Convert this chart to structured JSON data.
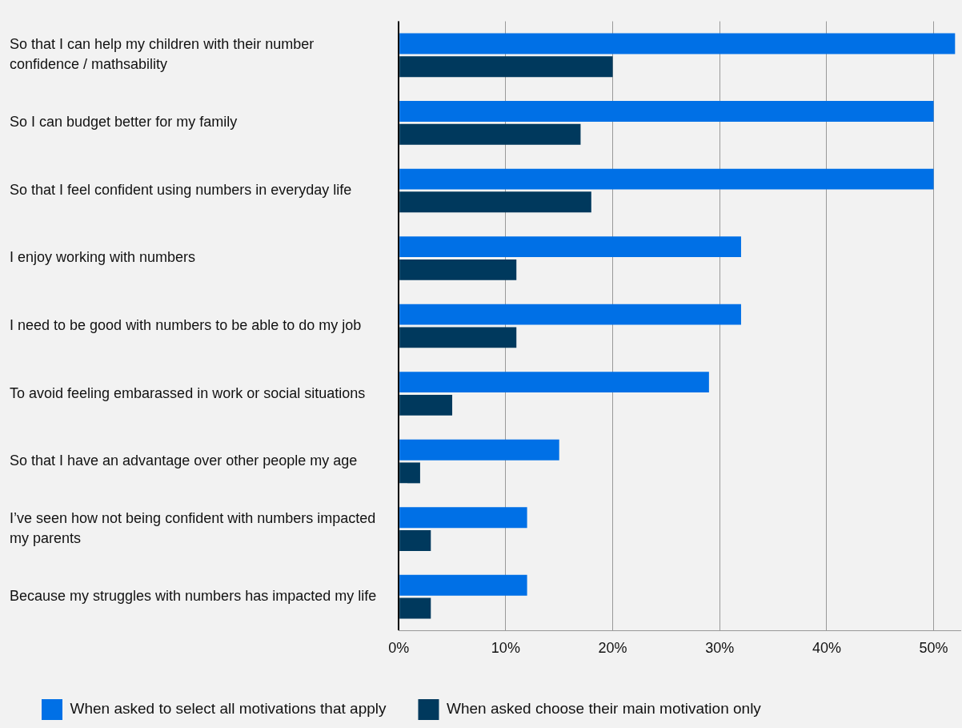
{
  "chart_data": {
    "type": "bar",
    "orientation": "horizontal",
    "categories": [
      "So that I can help my children with their number confidence / mathsability",
      "So I can budget better for my family",
      "So that I feel confident using numbers in everyday life",
      "I enjoy working with numbers",
      "I need to be good with numbers to be able to do my job",
      "To avoid feeling embarassed in work or social situations",
      "So that I have an advantage over other people my age",
      "I’ve seen how not being confident with numbers impacted my parents",
      "Because my struggles with numbers has impacted my life"
    ],
    "series": [
      {
        "name": "When asked to select all motivations that apply",
        "color": "#0070e6",
        "values": [
          52,
          50,
          50,
          32,
          32,
          29,
          15,
          12,
          12
        ]
      },
      {
        "name": "When asked choose their main motivation only",
        "color": "#00395d",
        "values": [
          20,
          17,
          18,
          11,
          11,
          5,
          2,
          3,
          3
        ]
      }
    ],
    "xlim": [
      0,
      52.5
    ],
    "xticks": [
      {
        "value": 0,
        "label": "0%"
      },
      {
        "value": 10,
        "label": "10%"
      },
      {
        "value": 20,
        "label": "20%"
      },
      {
        "value": 30,
        "label": "30%"
      },
      {
        "value": 40,
        "label": "40%"
      },
      {
        "value": 50,
        "label": "50%"
      }
    ],
    "grid": "x",
    "legend": "bottom"
  }
}
